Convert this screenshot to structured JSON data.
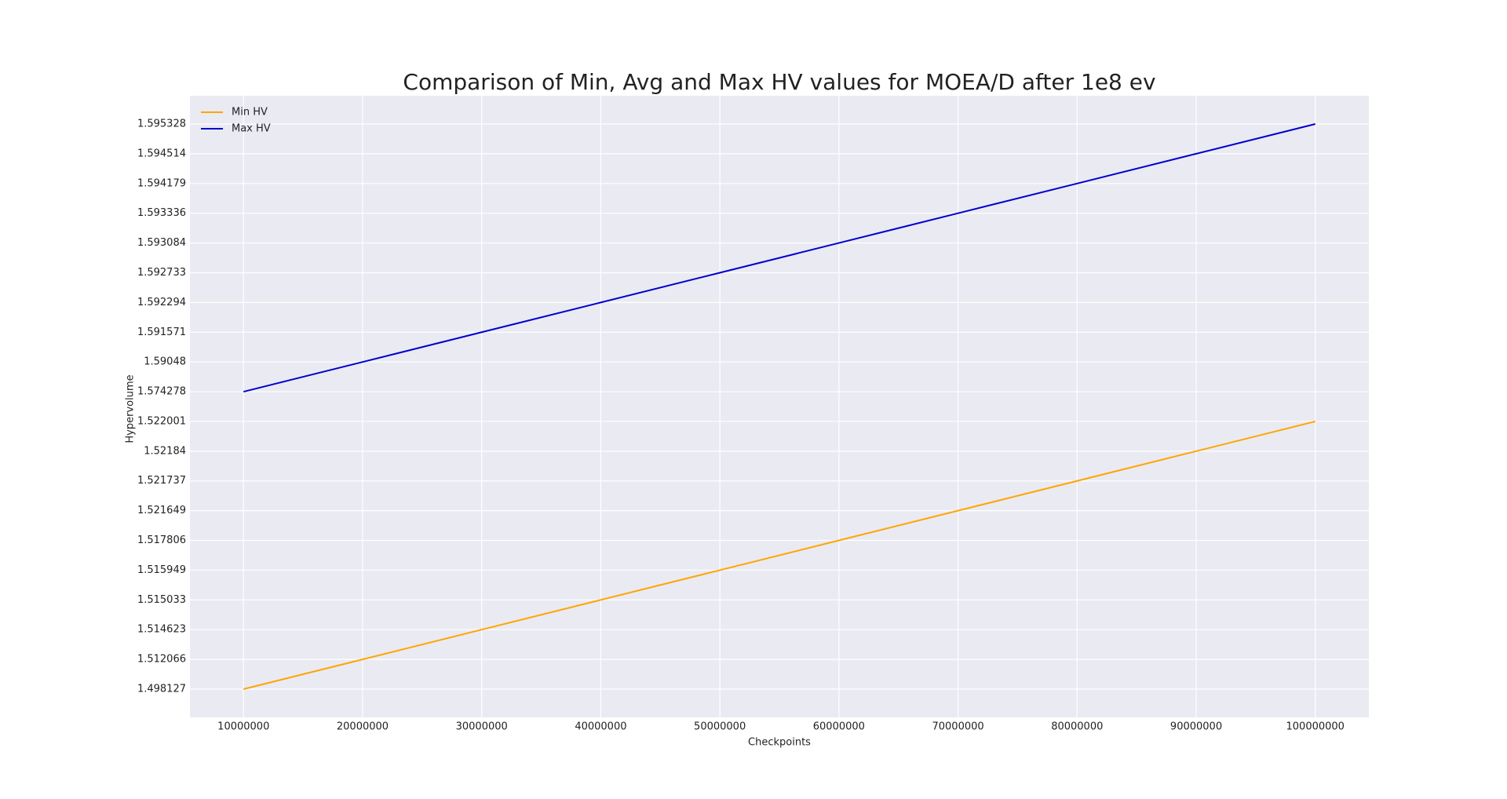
{
  "chart_data": {
    "type": "line",
    "title": "Comparison of Min, Avg and Max HV values for MOEA/D after 1e8 ev",
    "x_label": "Checkpoints",
    "y_label": "Hypervolume",
    "x": [
      10000000,
      20000000,
      30000000,
      40000000,
      50000000,
      60000000,
      70000000,
      80000000,
      90000000,
      100000000
    ],
    "series": [
      {
        "name": "Min HV",
        "color": "#ffa500",
        "values": [
          1.498127,
          1.512066,
          1.514623,
          1.515033,
          1.515949,
          1.517806,
          1.521649,
          1.521737,
          1.52184,
          1.522001
        ]
      },
      {
        "name": "Max HV",
        "color": "#0000cd",
        "values": [
          1.574278,
          1.59048,
          1.591571,
          1.592294,
          1.592733,
          1.593084,
          1.593336,
          1.594179,
          1.594514,
          1.595328
        ]
      }
    ],
    "xlim": [
      5500000,
      104500000
    ],
    "xticks": [
      10000000,
      20000000,
      30000000,
      40000000,
      50000000,
      60000000,
      70000000,
      80000000,
      90000000,
      100000000
    ],
    "y_scale": "categorical",
    "yticks": [
      1.498127,
      1.512066,
      1.514623,
      1.515033,
      1.515949,
      1.517806,
      1.521649,
      1.521737,
      1.52184,
      1.522001,
      1.574278,
      1.59048,
      1.591571,
      1.592294,
      1.592733,
      1.593084,
      1.593336,
      1.594179,
      1.594514,
      1.595328
    ],
    "grid": true,
    "legend_position": "upper-left"
  }
}
